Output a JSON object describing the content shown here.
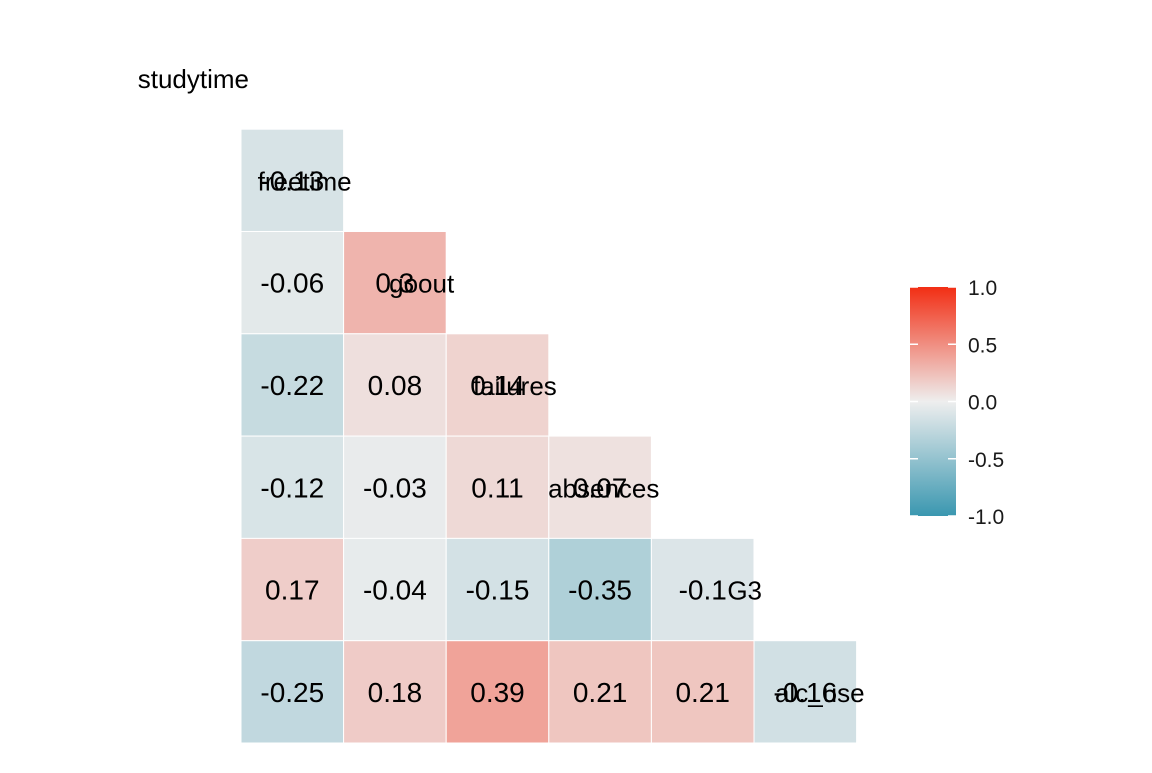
{
  "chart_data": {
    "type": "heatmap",
    "variables": [
      "studytime",
      "freetime",
      "goout",
      "failures",
      "absences",
      "G3",
      "alc_use"
    ],
    "cells": [
      {
        "row": "freetime",
        "col": "studytime",
        "value": -0.13
      },
      {
        "row": "goout",
        "col": "studytime",
        "value": -0.06
      },
      {
        "row": "goout",
        "col": "freetime",
        "value": 0.3
      },
      {
        "row": "failures",
        "col": "studytime",
        "value": -0.22
      },
      {
        "row": "failures",
        "col": "freetime",
        "value": 0.08
      },
      {
        "row": "failures",
        "col": "goout",
        "value": 0.14
      },
      {
        "row": "absences",
        "col": "studytime",
        "value": -0.12
      },
      {
        "row": "absences",
        "col": "freetime",
        "value": -0.03
      },
      {
        "row": "absences",
        "col": "goout",
        "value": 0.11
      },
      {
        "row": "absences",
        "col": "failures",
        "value": 0.07
      },
      {
        "row": "G3",
        "col": "studytime",
        "value": 0.17
      },
      {
        "row": "G3",
        "col": "freetime",
        "value": -0.04
      },
      {
        "row": "G3",
        "col": "goout",
        "value": -0.15
      },
      {
        "row": "G3",
        "col": "failures",
        "value": -0.35
      },
      {
        "row": "G3",
        "col": "absences",
        "value": -0.1
      },
      {
        "row": "alc_use",
        "col": "studytime",
        "value": -0.25
      },
      {
        "row": "alc_use",
        "col": "freetime",
        "value": 0.18
      },
      {
        "row": "alc_use",
        "col": "goout",
        "value": 0.39
      },
      {
        "row": "alc_use",
        "col": "failures",
        "value": 0.21
      },
      {
        "row": "alc_use",
        "col": "absences",
        "value": 0.21
      },
      {
        "row": "alc_use",
        "col": "G3",
        "value": -0.16
      }
    ],
    "color_scale": {
      "low": "#3a97b0",
      "mid": "#eeeeee",
      "high": "#f22e14",
      "limits": [
        -1.0,
        1.0
      ],
      "ticks": [
        1.0,
        0.5,
        0.0,
        -0.5,
        -1.0
      ],
      "tick_labels": [
        "1.0",
        "0.5",
        "0.0",
        "-0.5",
        "-1.0"
      ]
    },
    "legend_position": "right",
    "title": "",
    "grid": false
  }
}
